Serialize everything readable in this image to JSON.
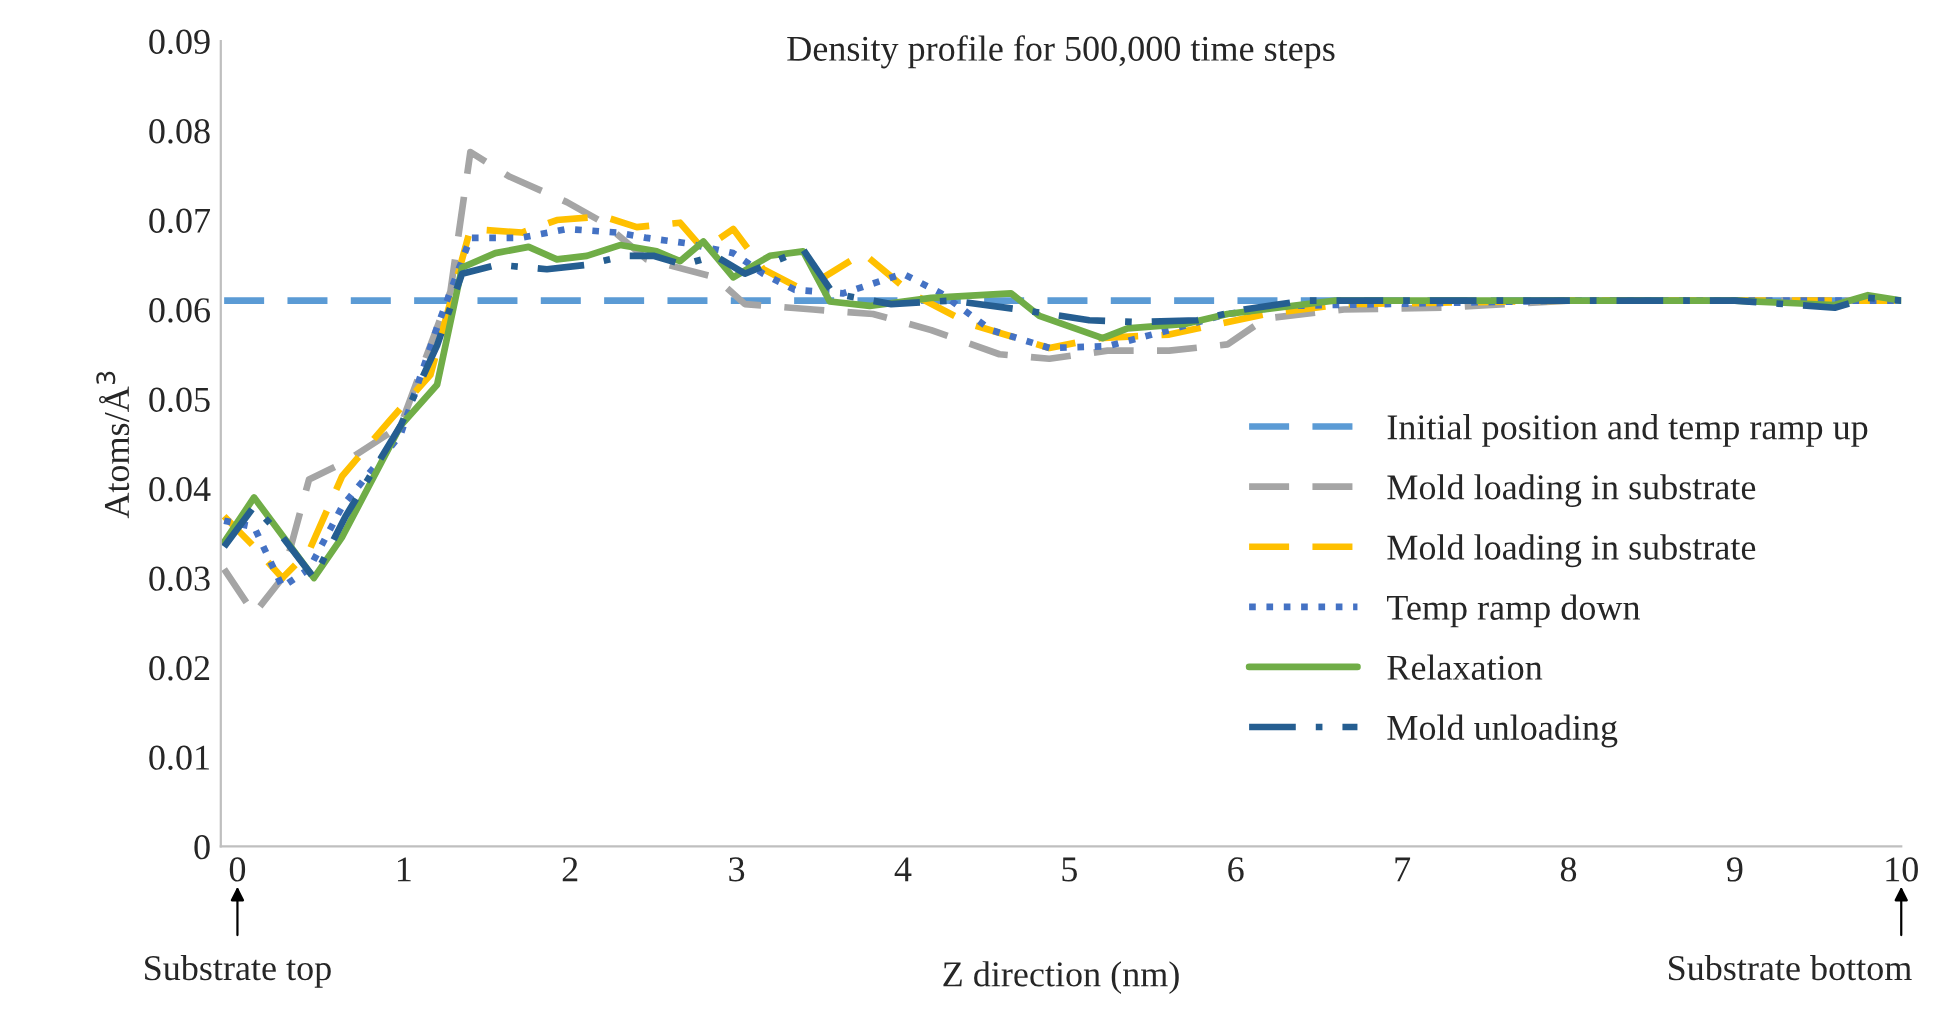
{
  "chart_data": {
    "type": "line",
    "title": "Density profile for 500,000 time steps",
    "xlabel": "Z direction (nm)",
    "ylabel": "Atoms/Å$^{3}$",
    "xlim": [
      -0.1,
      10
    ],
    "xticks": [
      0,
      1,
      2,
      3,
      4,
      5,
      6,
      7,
      8,
      9,
      10
    ],
    "ylim": [
      0,
      0.09
    ],
    "yticks": [
      0,
      0.01,
      0.02,
      0.03,
      0.04,
      0.05,
      0.06,
      0.07,
      0.08,
      0.09
    ],
    "grid": false,
    "legend": "right",
    "marker": "none",
    "annotations": [
      "Substrate top",
      "Substrate bottom"
    ],
    "series": [
      {
        "name": "Initial position and temp ramp up",
        "color": "#5b9bd5",
        "line_style": "dashed",
        "x": [
          -0.08,
          10
        ],
        "values": [
          0.061,
          0.061
        ]
      },
      {
        "name": "Mold loading in substrate",
        "color": "#a5a5a5",
        "line_style": "dashed",
        "x": [
          -0.08,
          0.1,
          0.27,
          0.43,
          0.65,
          0.98,
          1.28,
          1.4,
          1.63,
          1.98,
          2.2,
          2.46,
          2.87,
          3.05,
          3.46,
          3.82,
          4.17,
          4.58,
          4.88,
          5.23,
          5.6,
          5.95,
          6.18,
          6.65,
          7.25,
          8,
          9,
          10
        ],
        "values": [
          0.031,
          0.026,
          0.03,
          0.041,
          0.043,
          0.047,
          0.062,
          0.0776,
          0.0749,
          0.072,
          0.0697,
          0.0656,
          0.0636,
          0.0606,
          0.06,
          0.0595,
          0.0577,
          0.055,
          0.0545,
          0.0554,
          0.0554,
          0.0561,
          0.059,
          0.06,
          0.0602,
          0.061,
          0.061,
          0.061
        ]
      },
      {
        "name": "Mold loading in substrate",
        "color": "#ffc000",
        "line_style": "dashed",
        "x": [
          -0.08,
          0.1,
          0.27,
          0.43,
          0.63,
          0.92,
          1.16,
          1.4,
          1.71,
          1.92,
          2.2,
          2.4,
          2.66,
          2.8,
          2.98,
          3.16,
          3.4,
          3.76,
          4.05,
          4.4,
          4.88,
          5.18,
          5.6,
          5.9,
          6.18,
          6.65,
          8,
          9,
          10
        ],
        "values": [
          0.0369,
          0.0335,
          0.03,
          0.033,
          0.0414,
          0.0477,
          0.0527,
          0.069,
          0.0686,
          0.07,
          0.0704,
          0.0692,
          0.0697,
          0.0667,
          0.069,
          0.0645,
          0.0622,
          0.0663,
          0.0618,
          0.0584,
          0.0557,
          0.0568,
          0.0572,
          0.0584,
          0.0595,
          0.0606,
          0.061,
          0.061,
          0.061
        ]
      },
      {
        "name": "Temp ramp down",
        "color": "#4472c4",
        "line_style": "dotted",
        "x": [
          -0.08,
          0.1,
          0.27,
          0.43,
          0.63,
          0.98,
          1.2,
          1.4,
          1.7,
          1.98,
          2.28,
          2.46,
          2.7,
          2.98,
          3.16,
          3.35,
          3.64,
          4.0,
          4.23,
          4.53,
          4.88,
          5.23,
          5.6,
          5.95,
          6.3,
          8,
          9,
          10
        ],
        "values": [
          0.0364,
          0.0357,
          0.029,
          0.031,
          0.038,
          0.046,
          0.058,
          0.068,
          0.068,
          0.069,
          0.0686,
          0.068,
          0.0674,
          0.0663,
          0.064,
          0.0622,
          0.0618,
          0.064,
          0.0618,
          0.0577,
          0.0557,
          0.0559,
          0.0577,
          0.0595,
          0.0604,
          0.061,
          0.061,
          0.061
        ]
      },
      {
        "name": "Relaxation",
        "color": "#70ad47",
        "line_style": "solid",
        "x": [
          -0.08,
          0.1,
          0.46,
          0.63,
          0.98,
          1.2,
          1.35,
          1.55,
          1.75,
          1.92,
          2.1,
          2.3,
          2.46,
          2.52,
          2.66,
          2.8,
          2.98,
          3.2,
          3.4,
          3.56,
          3.8,
          4.17,
          4.65,
          4.82,
          5.2,
          5.35,
          5.7,
          5.95,
          6.6,
          8,
          9,
          9.6,
          9.8,
          10
        ],
        "values": [
          0.034,
          0.039,
          0.03,
          0.0346,
          0.047,
          0.0516,
          0.0647,
          0.0663,
          0.067,
          0.0656,
          0.066,
          0.0672,
          0.0667,
          0.0665,
          0.0654,
          0.0676,
          0.0636,
          0.066,
          0.0665,
          0.0609,
          0.0604,
          0.0613,
          0.0618,
          0.0593,
          0.0568,
          0.0579,
          0.0584,
          0.0595,
          0.061,
          0.061,
          0.061,
          0.0605,
          0.0616,
          0.061
        ]
      },
      {
        "name": "Mold unloading",
        "color": "#255e91",
        "line_style": "dashdot",
        "x": [
          -0.08,
          0.1,
          0.27,
          0.46,
          0.65,
          0.98,
          1.2,
          1.35,
          1.56,
          1.86,
          2.1,
          2.33,
          2.5,
          2.68,
          2.87,
          3.05,
          3.4,
          3.58,
          3.93,
          4.29,
          4.7,
          5.12,
          5.4,
          5.77,
          6.05,
          6.42,
          8,
          9,
          9.6,
          9.8,
          10
        ],
        "values": [
          0.0335,
          0.038,
          0.0346,
          0.03,
          0.0369,
          0.047,
          0.056,
          0.064,
          0.065,
          0.0645,
          0.065,
          0.066,
          0.066,
          0.065,
          0.066,
          0.064,
          0.0667,
          0.0618,
          0.0606,
          0.061,
          0.06,
          0.0588,
          0.0586,
          0.0588,
          0.06,
          0.061,
          0.061,
          0.061,
          0.0602,
          0.0613,
          0.061
        ]
      }
    ]
  }
}
